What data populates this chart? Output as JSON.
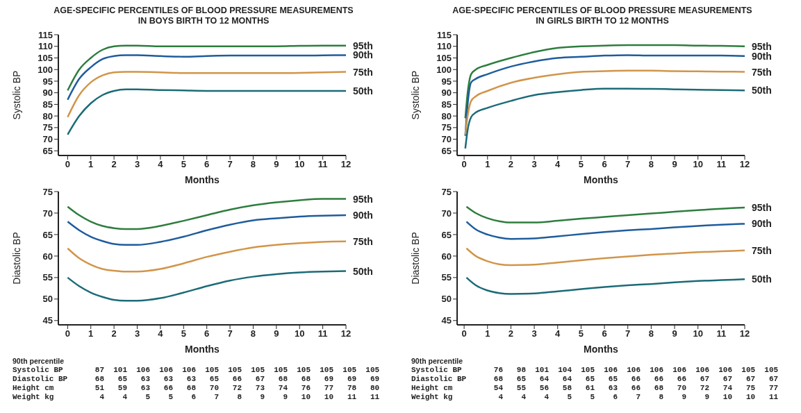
{
  "chart_data": [
    {
      "type": "line",
      "title": "AGE-SPECIFIC PERCENTILES OF BLOOD PRESSURE MEASUREMENTS IN BOYS BIRTH TO 12 MONTHS",
      "xlabel": "Months",
      "ylabel": "Systolic BP",
      "xlim": [
        -0.4,
        12
      ],
      "xticks": [
        0,
        1,
        2,
        3,
        4,
        5,
        6,
        7,
        8,
        9,
        10,
        11,
        12
      ],
      "ylim": [
        63,
        115
      ],
      "yticks": [
        65,
        70,
        75,
        80,
        85,
        90,
        95,
        100,
        105,
        110,
        115
      ],
      "legend": false,
      "grid": false,
      "marker": "none",
      "line_style": "solid",
      "series": [
        {
          "name": "95th",
          "color": "#2e7d3e",
          "x": [
            0,
            0.5,
            1,
            1.5,
            2,
            2.5,
            3,
            4,
            5,
            6,
            7,
            8,
            9,
            10,
            11,
            12
          ],
          "values": [
            91,
            100,
            105,
            108.5,
            110,
            110.3,
            110.3,
            110,
            110,
            110,
            110,
            110,
            110,
            110.2,
            110.3,
            110.3
          ]
        },
        {
          "name": "90th",
          "color": "#1f5c9c",
          "x": [
            0,
            0.5,
            1,
            1.5,
            2,
            2.5,
            3,
            4,
            5,
            6,
            7,
            8,
            9,
            10,
            11,
            12
          ],
          "values": [
            87,
            96,
            101,
            104.5,
            105.8,
            106.2,
            106.2,
            105.8,
            105.5,
            105.8,
            106,
            106,
            106,
            106,
            106.1,
            106.2
          ]
        },
        {
          "name": "75th",
          "color": "#d1954a",
          "x": [
            0,
            0.5,
            1,
            1.5,
            2,
            2.5,
            3,
            4,
            5,
            6,
            7,
            8,
            9,
            10,
            11,
            12
          ],
          "values": [
            79.5,
            89,
            94.5,
            97.5,
            98.8,
            99,
            99,
            98.8,
            98.5,
            98.5,
            98.5,
            98.5,
            98.5,
            98.6,
            98.8,
            99
          ]
        },
        {
          "name": "50th",
          "color": "#1b6b78",
          "x": [
            0,
            0.5,
            1,
            1.5,
            2,
            2.5,
            3,
            4,
            5,
            6,
            7,
            8,
            9,
            10,
            11,
            12
          ],
          "values": [
            72,
            80,
            85.5,
            89,
            90.8,
            91.5,
            91.5,
            91.2,
            91,
            90.8,
            90.8,
            90.8,
            90.8,
            90.8,
            90.8,
            90.8
          ]
        }
      ]
    },
    {
      "type": "line",
      "title": "AGE-SPECIFIC PERCENTILES OF BLOOD PRESSURE MEASUREMENTS IN GIRLS BIRTH TO 12 MONTHS",
      "xlabel": "Months",
      "ylabel": "Systolic BP",
      "xlim": [
        -0.3,
        12
      ],
      "xticks": [
        0,
        1,
        2,
        3,
        4,
        5,
        6,
        7,
        8,
        9,
        10,
        11,
        12
      ],
      "ylim": [
        63,
        115
      ],
      "yticks": [
        65,
        70,
        75,
        80,
        85,
        90,
        95,
        100,
        105,
        110,
        115
      ],
      "legend": false,
      "grid": false,
      "marker": "none",
      "line_style": "solid",
      "series": [
        {
          "name": "95th",
          "color": "#2e7d3e",
          "x": [
            0.05,
            0.15,
            0.3,
            0.5,
            1,
            2,
            3,
            4,
            5,
            6,
            7,
            8,
            9,
            10,
            11,
            12
          ],
          "values": [
            79,
            90,
            98,
            100,
            102,
            105,
            107.5,
            109.3,
            110,
            110.3,
            110.5,
            110.5,
            110.5,
            110.3,
            110.2,
            110
          ]
        },
        {
          "name": "90th",
          "color": "#1f5c9c",
          "x": [
            0.05,
            0.15,
            0.3,
            0.5,
            1,
            2,
            3,
            4,
            5,
            6,
            7,
            8,
            9,
            10,
            11,
            12
          ],
          "values": [
            71.5,
            85,
            94.5,
            96,
            98,
            101.3,
            103.5,
            105,
            105.5,
            106,
            106.2,
            106,
            106,
            106,
            106,
            105.8
          ]
        },
        {
          "name": "75th",
          "color": "#d1954a",
          "x": [
            0.05,
            0.15,
            0.3,
            0.5,
            1,
            2,
            3,
            4,
            5,
            6,
            7,
            8,
            9,
            10,
            11,
            12
          ],
          "values": [
            72,
            80,
            86.5,
            88.5,
            90.8,
            94.3,
            96.5,
            98,
            99,
            99.3,
            99.5,
            99.5,
            99.3,
            99.2,
            99.1,
            99
          ]
        },
        {
          "name": "50th",
          "color": "#1b6b78",
          "x": [
            0.05,
            0.15,
            0.3,
            0.5,
            1,
            2,
            3,
            4,
            5,
            6,
            7,
            8,
            9,
            10,
            11,
            12
          ],
          "values": [
            66,
            74,
            79.5,
            81.5,
            83.5,
            86.5,
            89,
            90.3,
            91.2,
            91.8,
            91.8,
            91.7,
            91.5,
            91.3,
            91.2,
            91
          ]
        }
      ]
    },
    {
      "type": "line",
      "xlabel": "Months",
      "ylabel": "Diastolic BP",
      "xlim": [
        -0.4,
        12
      ],
      "xticks": [
        0,
        1,
        2,
        3,
        4,
        5,
        6,
        7,
        8,
        9,
        10,
        11,
        12
      ],
      "ylim": [
        44,
        75
      ],
      "yticks": [
        45,
        50,
        55,
        60,
        65,
        70,
        75
      ],
      "legend": false,
      "grid": false,
      "marker": "none",
      "line_style": "solid",
      "series": [
        {
          "name": "95th",
          "color": "#2e7d3e",
          "x": [
            0,
            0.5,
            1,
            1.5,
            2,
            2.5,
            3,
            4,
            5,
            6,
            7,
            8,
            9,
            10,
            11,
            12
          ],
          "values": [
            71.5,
            69.5,
            68,
            67,
            66.5,
            66.3,
            66.3,
            67,
            68.2,
            69.5,
            70.8,
            71.8,
            72.5,
            73,
            73.3,
            73.3
          ]
        },
        {
          "name": "90th",
          "color": "#1f5c9c",
          "x": [
            0,
            0.5,
            1,
            1.5,
            2,
            2.5,
            3,
            4,
            5,
            6,
            7,
            8,
            9,
            10,
            11,
            12
          ],
          "values": [
            68,
            66,
            64.5,
            63.5,
            62.8,
            62.6,
            62.6,
            63.3,
            64.5,
            66,
            67.3,
            68.3,
            68.8,
            69.2,
            69.4,
            69.5
          ]
        },
        {
          "name": "75th",
          "color": "#d1954a",
          "x": [
            0,
            0.5,
            1,
            1.5,
            2,
            2.5,
            3,
            4,
            5,
            6,
            7,
            8,
            9,
            10,
            11,
            12
          ],
          "values": [
            61.8,
            59.5,
            58,
            57,
            56.6,
            56.4,
            56.4,
            57,
            58.3,
            59.8,
            61,
            62,
            62.6,
            63,
            63.3,
            63.4
          ]
        },
        {
          "name": "50th",
          "color": "#1b6b78",
          "x": [
            0,
            0.5,
            1,
            1.5,
            2,
            2.5,
            3,
            4,
            5,
            6,
            7,
            8,
            9,
            10,
            11,
            12
          ],
          "values": [
            55,
            53,
            51.5,
            50.5,
            49.8,
            49.6,
            49.6,
            50.2,
            51.5,
            53,
            54.3,
            55.2,
            55.8,
            56.2,
            56.4,
            56.5
          ]
        }
      ]
    },
    {
      "type": "line",
      "xlabel": "Months",
      "ylabel": "Diastolic BP",
      "xlim": [
        -0.3,
        12
      ],
      "xticks": [
        0,
        1,
        2,
        3,
        4,
        5,
        6,
        7,
        8,
        9,
        10,
        11,
        12
      ],
      "ylim": [
        44,
        75
      ],
      "yticks": [
        45,
        50,
        55,
        60,
        65,
        70,
        75
      ],
      "legend": false,
      "grid": false,
      "marker": "none",
      "line_style": "solid",
      "series": [
        {
          "name": "95th",
          "color": "#2e7d3e",
          "x": [
            0.1,
            0.5,
            1,
            1.5,
            2,
            3,
            4,
            5,
            6,
            7,
            8,
            9,
            10,
            11,
            12
          ],
          "values": [
            71.5,
            70,
            68.8,
            68.1,
            67.8,
            67.8,
            68.2,
            68.7,
            69.1,
            69.5,
            69.9,
            70.3,
            70.7,
            71,
            71.3
          ]
        },
        {
          "name": "90th",
          "color": "#1f5c9c",
          "x": [
            0.1,
            0.5,
            1,
            1.5,
            2,
            3,
            4,
            5,
            6,
            7,
            8,
            9,
            10,
            11,
            12
          ],
          "values": [
            68,
            66.2,
            65,
            64.3,
            64,
            64.1,
            64.6,
            65.1,
            65.6,
            66,
            66.3,
            66.7,
            67,
            67.3,
            67.5
          ]
        },
        {
          "name": "75th",
          "color": "#d1954a",
          "x": [
            0.1,
            0.5,
            1,
            1.5,
            2,
            3,
            4,
            5,
            6,
            7,
            8,
            9,
            10,
            11,
            12
          ],
          "values": [
            61.8,
            60,
            58.8,
            58.1,
            57.9,
            58,
            58.5,
            59,
            59.5,
            59.9,
            60.3,
            60.6,
            60.9,
            61.1,
            61.3
          ]
        },
        {
          "name": "50th",
          "color": "#1b6b78",
          "x": [
            0.1,
            0.5,
            1,
            1.5,
            2,
            3,
            4,
            5,
            6,
            7,
            8,
            9,
            10,
            11,
            12
          ],
          "values": [
            55,
            53.2,
            52,
            51.4,
            51.2,
            51.3,
            51.8,
            52.3,
            52.8,
            53.2,
            53.5,
            53.9,
            54.2,
            54.4,
            54.6
          ]
        }
      ]
    },
    {
      "type": "other",
      "title": "90th percentile",
      "annotations": [
        "Systolic BP 87 101 106 106 106 105 105 105 105 105 105 105 105",
        "Diastolic BP 68 65 63 63 63 65 66 67 68 68 69 69 69",
        "Height cm 51 59 63 66 68 70 72 73 74 76 77 78 80",
        "Weight kg 4 4 5 5 6 7 8 9 9 10 10 11 11"
      ]
    },
    {
      "type": "other",
      "title": "90th percentile",
      "annotations": [
        "Systolic BP 76 98 101 104 105 106 106 106 106 106 106 105 105",
        "Diastolic BP 68 65 64 64 65 65 66 66 66 67 67 67 67",
        "Height cm 54 55 56 58 61 63 66 68 70 72 74 75 77",
        "Weight kg 4 4 4 5 5 6 7 8 9 9 10 10 11"
      ]
    }
  ]
}
